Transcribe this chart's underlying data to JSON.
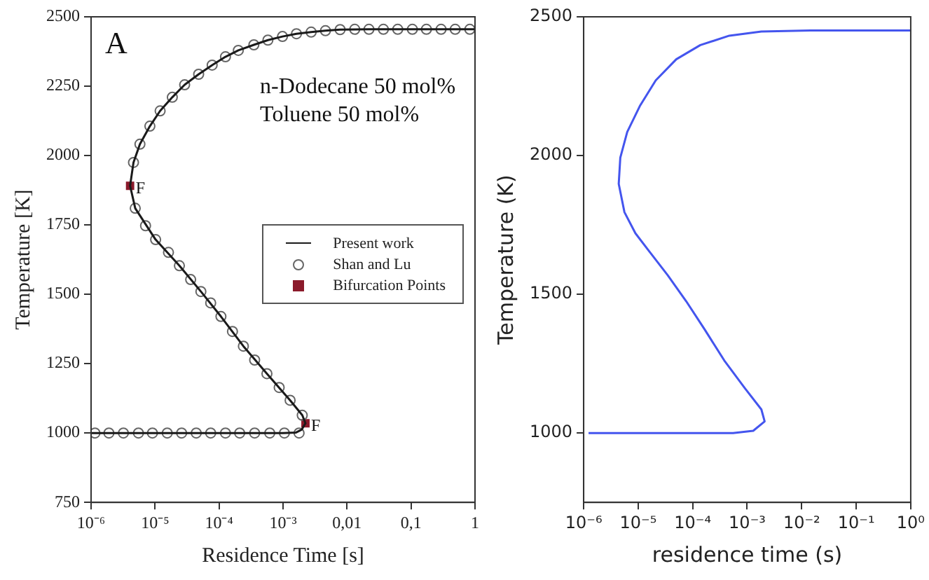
{
  "chart_data": [
    {
      "type": "line",
      "xlabel": "Residence Time [s]",
      "ylabel": "Temperature [K]",
      "log": "x",
      "grid": false,
      "legend": "right",
      "xlim": [
        1e-06,
        1
      ],
      "ylim": [
        750,
        2500
      ],
      "xticks": [
        {
          "value": 1e-06,
          "label": "10⁻⁶"
        },
        {
          "value": 1e-05,
          "label": "10⁻⁵"
        },
        {
          "value": 0.0001,
          "label": "10⁻⁴"
        },
        {
          "value": 0.001,
          "label": "10⁻³"
        },
        {
          "value": 0.01,
          "label": "0,01"
        },
        {
          "value": 0.1,
          "label": "0,1"
        },
        1
      ],
      "yticks": [
        750,
        1000,
        1250,
        1500,
        1750,
        2000,
        2250,
        2500
      ],
      "annotations": [
        "A",
        "n-Dodecane 50 mol%",
        "Toluene 50 mol%",
        {
          "text": "F",
          "x": 4.07e-06,
          "y": 1891
        },
        {
          "text": "F",
          "x": 0.00224,
          "y": 1035
        }
      ],
      "series": [
        {
          "name": "Present work",
          "type": "line",
          "marker": "none",
          "color": "#1a1a1a",
          "x": [
            1e-06,
            0.0001,
            0.001,
            0.0016,
            0.00195,
            0.00224,
            0.002,
            0.00129,
            0.00056,
            0.00024,
            0.000107,
            5.2e-05,
            2.4e-05,
            1.02e-05,
            4.9e-06,
            4.07e-06,
            4.6e-06,
            5.8e-06,
            8.3e-06,
            1.2e-05,
            1.86e-05,
            2.9e-05,
            4.8e-05,
            7.8e-05,
            0.000126,
            0.0002,
            0.00035,
            0.00058,
            0.00098,
            0.00162,
            0.00275,
            0.0046,
            0.0078,
            0.022,
            0.105,
            1
          ],
          "values": [
            1000,
            1000,
            1000,
            1002,
            1012,
            1035,
            1064,
            1118,
            1214,
            1313,
            1420,
            1510,
            1603,
            1697,
            1810,
            1891,
            1975,
            2041,
            2106,
            2161,
            2210,
            2255,
            2293,
            2326,
            2356,
            2379,
            2399,
            2416,
            2429,
            2439,
            2445,
            2450,
            2454,
            2455,
            2455,
            2455
          ]
        },
        {
          "name": "Shan and Lu",
          "type": "scatter",
          "marker": "circle",
          "color": "#666666",
          "x": [
            1.15e-06,
            1.9e-06,
            3.2e-06,
            5.5e-06,
            9.1e-06,
            1.55e-05,
            2.6e-05,
            4.4e-05,
            7.4e-05,
            0.000126,
            0.00021,
            0.00036,
            0.00062,
            0.00105,
            0.00178,
            0.001995,
            0.00129,
            0.00087,
            0.00056,
            0.00036,
            0.00024,
            0.000162,
            0.000107,
            7.4e-05,
            5.2e-05,
            3.6e-05,
            2.4e-05,
            1.62e-05,
            1.02e-05,
            7.1e-06,
            4.9e-06,
            4.6e-06,
            5.8e-06,
            8.3e-06,
            1.2e-05,
            1.86e-05,
            2.9e-05,
            4.8e-05,
            7.8e-05,
            0.000126,
            0.0002,
            0.00035,
            0.00058,
            0.00098,
            0.00162,
            0.00275,
            0.0046,
            0.0078,
            0.0132,
            0.022,
            0.037,
            0.062,
            0.105,
            0.174,
            0.295,
            0.49,
            0.83
          ],
          "values": [
            1000,
            1000,
            1000,
            1000,
            1000,
            1000,
            1000,
            1000,
            1000,
            1000,
            1000,
            1000,
            1000,
            1000,
            1000,
            1064,
            1118,
            1164,
            1214,
            1263,
            1313,
            1366,
            1420,
            1469,
            1510,
            1553,
            1603,
            1651,
            1697,
            1747,
            1810,
            1975,
            2041,
            2106,
            2161,
            2210,
            2255,
            2293,
            2326,
            2356,
            2379,
            2399,
            2416,
            2429,
            2439,
            2445,
            2450,
            2454,
            2455,
            2455,
            2455,
            2455,
            2455,
            2455,
            2455,
            2455,
            2455
          ]
        },
        {
          "name": "Bifurcation Points",
          "type": "scatter",
          "marker": "square",
          "color": "#8b1a2b",
          "x": [
            4.07e-06,
            0.00224
          ],
          "values": [
            1891,
            1035
          ]
        }
      ]
    },
    {
      "type": "line",
      "xlabel": "residence time (s)",
      "ylabel": "Temperature (K)",
      "log": "x",
      "grid": false,
      "xlim": [
        1e-06,
        1
      ],
      "ylim": [
        750,
        2500
      ],
      "xticks": [
        {
          "value": 1e-06,
          "label": "10⁻⁶"
        },
        {
          "value": 1e-05,
          "label": "10⁻⁵"
        },
        {
          "value": 0.0001,
          "label": "10⁻⁴"
        },
        {
          "value": 0.001,
          "label": "10⁻³"
        },
        {
          "value": 0.01,
          "label": "10⁻²"
        },
        {
          "value": 0.1,
          "label": "10⁻¹"
        },
        {
          "value": 1,
          "label": "10⁰"
        }
      ],
      "yticks": [
        1000,
        1500,
        2000,
        2500
      ],
      "series": [
        {
          "type": "line",
          "marker": "none",
          "color": "#4455ee",
          "x": [
            1.23e-06,
            0.00055,
            0.00129,
            0.00209,
            0.00182,
            0.00091,
            0.00039,
            0.000166,
            7.6e-05,
            3.5e-05,
            1.51e-05,
            8.9e-06,
            5.6e-06,
            4.4e-06,
            4.7e-06,
            6.3e-06,
            1.07e-05,
            2.1e-05,
            5e-05,
            0.000138,
            0.00047,
            0.00182,
            0.0145,
            1
          ],
          "values": [
            1000,
            1000,
            1008,
            1042,
            1085,
            1161,
            1258,
            1373,
            1475,
            1568,
            1661,
            1720,
            1796,
            1898,
            1992,
            2085,
            2178,
            2271,
            2347,
            2398,
            2432,
            2447,
            2451,
            2451
          ]
        }
      ]
    }
  ]
}
